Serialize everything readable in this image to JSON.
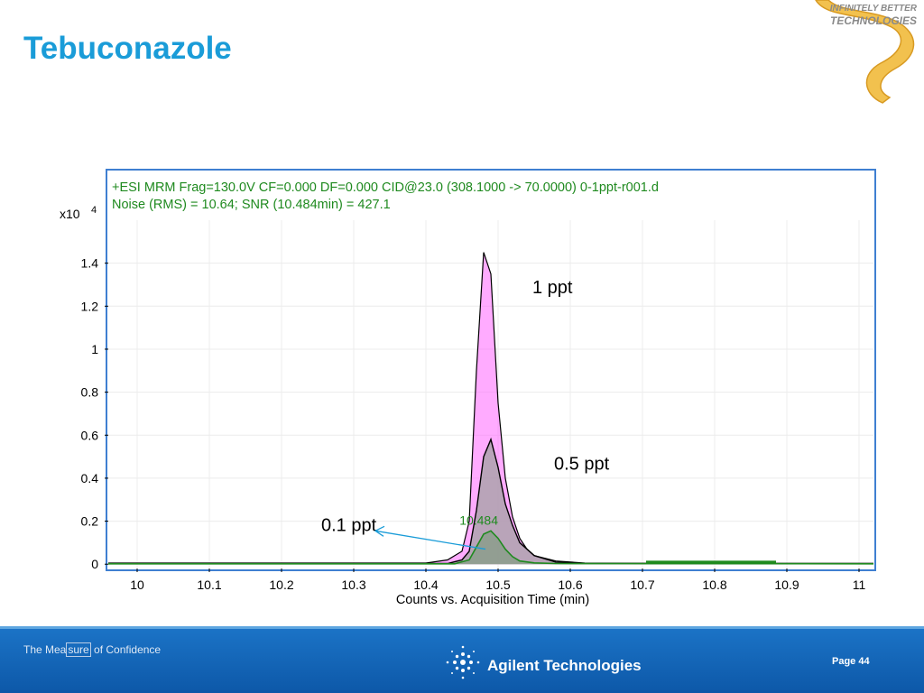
{
  "slide": {
    "title": "Tebuconazole",
    "logo_line1": "INFINITELY BETTER",
    "logo_line2": "TECHNOLOGIES"
  },
  "footer": {
    "tagline_before": "The Mea",
    "tagline_boxed": "sure",
    "tagline_after": " of Confidence",
    "brand": "Agilent Technologies",
    "page": "Page 44"
  },
  "colors": {
    "title": "#1a9cd8",
    "frame": "#3f7fd1",
    "header_text": "#1f8a1f",
    "peak_1ppt": "#ff66ff",
    "peak_05ppt": "#a2a2a2",
    "peak_01ppt": "#1f8a1f",
    "arrow": "#1a9cd8"
  },
  "chart_data": {
    "type": "line",
    "header_line1": "+ESI MRM Frag=130.0V CF=0.000 DF=0.000 CID@23.0 (308.1000 -> 70.0000) 0-1ppt-r001.d",
    "header_line2": "Noise (RMS) = 10.64; SNR (10.484min) = 427.1",
    "y_multiplier": "x10",
    "y_multiplier_exp": "4",
    "xlabel": "Counts vs. Acquisition Time (min)",
    "xlim": [
      9.96,
      11.02
    ],
    "ylim": [
      -0.02,
      1.6
    ],
    "x_ticks": [
      10,
      10.1,
      10.2,
      10.3,
      10.4,
      10.5,
      10.6,
      10.7,
      10.8,
      10.9,
      11
    ],
    "x_tick_labels": [
      "10",
      "10.1",
      "10.2",
      "10.3",
      "10.4",
      "10.5",
      "10.6",
      "10.7",
      "10.8",
      "10.9",
      "11"
    ],
    "y_ticks": [
      0,
      0.2,
      0.4,
      0.6,
      0.8,
      1,
      1.2,
      1.4
    ],
    "y_tick_labels": [
      "0",
      "0.2",
      "0.4",
      "0.6",
      "0.8",
      "1",
      "1.2",
      "1.4"
    ],
    "grid": true,
    "series": [
      {
        "name": "1 ppt",
        "x": [
          9.96,
          10.4,
          10.43,
          10.45,
          10.46,
          10.47,
          10.48,
          10.49,
          10.5,
          10.51,
          10.52,
          10.53,
          10.54,
          10.55,
          10.58,
          10.62,
          10.7,
          11.02
        ],
        "y": [
          0.005,
          0.005,
          0.02,
          0.06,
          0.2,
          0.9,
          1.45,
          1.35,
          0.75,
          0.4,
          0.22,
          0.12,
          0.07,
          0.04,
          0.015,
          0.005,
          0.003,
          0.003
        ]
      },
      {
        "name": "0.5 ppt",
        "x": [
          9.96,
          10.43,
          10.45,
          10.46,
          10.47,
          10.48,
          10.49,
          10.5,
          10.51,
          10.52,
          10.53,
          10.55,
          10.58,
          10.62,
          11.02
        ],
        "y": [
          0.003,
          0.003,
          0.02,
          0.06,
          0.25,
          0.5,
          0.58,
          0.45,
          0.28,
          0.18,
          0.1,
          0.04,
          0.01,
          0.004,
          0.003
        ]
      },
      {
        "name": "0.1 ppt",
        "x": [
          9.96,
          10.44,
          10.46,
          10.47,
          10.48,
          10.49,
          10.5,
          10.51,
          10.52,
          10.53,
          10.55,
          10.58,
          11.02
        ],
        "y": [
          0.002,
          0.002,
          0.02,
          0.08,
          0.14,
          0.155,
          0.12,
          0.07,
          0.035,
          0.015,
          0.006,
          0.003,
          0.002
        ]
      }
    ],
    "annotations": [
      {
        "text": "1 ppt",
        "x": 10.54,
        "y": 1.26
      },
      {
        "text": "0.5 ppt",
        "x": 10.57,
        "y": 0.44
      },
      {
        "text": "0.1 ppt",
        "x": 10.23,
        "y": 0.18
      },
      {
        "text": "10.484",
        "x": 10.484,
        "y": 0.2
      }
    ]
  }
}
